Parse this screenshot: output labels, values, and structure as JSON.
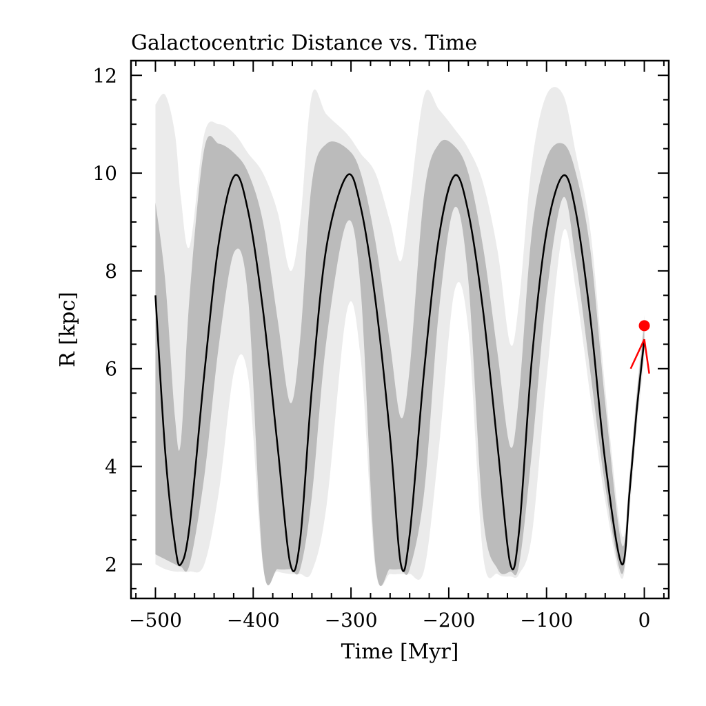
{
  "chart_data": {
    "type": "line",
    "title": "Galactocentric Distance vs. Time",
    "xlabel": "Time [Myr]",
    "ylabel": "R [kpc]",
    "xlim": [
      -525,
      25
    ],
    "ylim": [
      1.3,
      12.3
    ],
    "xticks": [
      -500,
      -400,
      -300,
      -200,
      -100,
      0
    ],
    "xtick_labels": [
      "−500",
      "−400",
      "−300",
      "−200",
      "−100",
      "0"
    ],
    "yticks": [
      2,
      4,
      6,
      8,
      10,
      12
    ],
    "ytick_labels": [
      "2",
      "4",
      "6",
      "8",
      "10",
      "12"
    ],
    "grid": false,
    "series": [
      {
        "role": "best-fit orbit",
        "color": "#000000",
        "x": [
          -500,
          -490,
          -480,
          -474,
          -465,
          -450,
          -435,
          -419,
          -405,
          -390,
          -375,
          -362,
          -352,
          -340,
          -325,
          -304,
          -290,
          -275,
          -260,
          -249,
          -240,
          -225,
          -210,
          -194,
          -180,
          -165,
          -150,
          -137,
          -128,
          -115,
          -100,
          -83,
          -70,
          -55,
          -40,
          -23,
          -15,
          -8,
          0
        ],
        "y": [
          7.5,
          4.3,
          2.4,
          2.0,
          2.8,
          5.9,
          8.6,
          9.95,
          9.2,
          7.2,
          4.4,
          2.0,
          2.5,
          5.6,
          8.5,
          9.95,
          9.3,
          7.4,
          4.6,
          2.0,
          2.6,
          6.0,
          8.7,
          9.95,
          9.2,
          7.2,
          4.4,
          2.0,
          2.7,
          6.2,
          8.8,
          9.95,
          9.2,
          7.0,
          4.1,
          2.0,
          3.5,
          5.1,
          6.6
        ]
      }
    ],
    "envelope": [
      {
        "role": "1-sigma orbits",
        "color": "#bbbbbb",
        "x": [
          -500,
          -490,
          -480,
          -474,
          -465,
          -450,
          -435,
          -419,
          -405,
          -390,
          -375,
          -362,
          -352,
          -340,
          -325,
          -304,
          -290,
          -275,
          -260,
          -249,
          -240,
          -225,
          -210,
          -194,
          -180,
          -165,
          -150,
          -137,
          -128,
          -115,
          -100,
          -83,
          -70,
          -55,
          -40,
          -23,
          -15,
          -8,
          0
        ],
        "lower": [
          2.2,
          2.1,
          2.0,
          1.95,
          2.0,
          3.8,
          6.5,
          8.4,
          7.4,
          2.0,
          1.9,
          1.9,
          1.9,
          3.4,
          6.6,
          9.0,
          7.6,
          2.0,
          1.9,
          1.9,
          1.9,
          3.5,
          7.2,
          9.3,
          7.8,
          3.0,
          1.9,
          1.85,
          2.0,
          4.3,
          7.5,
          9.5,
          8.2,
          5.9,
          3.6,
          1.8,
          3.3,
          4.9,
          6.4
        ],
        "upper": [
          9.4,
          7.8,
          5.0,
          4.5,
          7.5,
          10.5,
          10.6,
          10.4,
          10.0,
          9.0,
          7.0,
          5.3,
          6.6,
          9.8,
          10.6,
          10.5,
          10.0,
          8.6,
          6.5,
          5.0,
          6.0,
          9.6,
          10.6,
          10.55,
          10.0,
          8.5,
          6.3,
          4.4,
          5.5,
          8.8,
          10.3,
          10.6,
          10.0,
          8.4,
          5.3,
          2.4,
          3.8,
          5.4,
          6.9
        ]
      },
      {
        "role": "2-sigma orbits",
        "color": "#ebebeb",
        "x": [
          -500,
          -490,
          -480,
          -474,
          -465,
          -450,
          -435,
          -419,
          -405,
          -390,
          -375,
          -362,
          -352,
          -340,
          -325,
          -304,
          -290,
          -275,
          -260,
          -249,
          -240,
          -225,
          -210,
          -194,
          -180,
          -165,
          -150,
          -137,
          -128,
          -115,
          -100,
          -83,
          -70,
          -55,
          -40,
          -23,
          -15,
          -8,
          0
        ],
        "lower": [
          2.0,
          1.9,
          1.85,
          1.85,
          1.85,
          2.0,
          3.5,
          6.0,
          5.8,
          2.0,
          1.85,
          1.8,
          1.8,
          1.85,
          3.2,
          7.2,
          6.2,
          1.9,
          1.8,
          1.8,
          1.8,
          1.9,
          4.4,
          7.6,
          6.8,
          2.2,
          1.8,
          1.75,
          1.8,
          2.6,
          5.8,
          8.8,
          7.6,
          5.4,
          3.3,
          1.7,
          3.1,
          4.7,
          6.2
        ],
        "upper": [
          11.4,
          11.6,
          10.8,
          9.5,
          8.5,
          10.8,
          11.0,
          10.8,
          10.4,
          10.0,
          9.2,
          8.0,
          9.0,
          11.6,
          11.2,
          10.8,
          10.4,
          10.0,
          9.0,
          8.2,
          9.4,
          11.6,
          11.3,
          10.9,
          10.5,
          9.8,
          8.4,
          6.5,
          7.4,
          10.2,
          11.6,
          11.6,
          10.4,
          8.8,
          5.6,
          2.6,
          3.9,
          5.5,
          7.1
        ]
      }
    ],
    "annotations": [
      {
        "role": "current position",
        "shape": "circle",
        "color": "#ff0000",
        "x": 0,
        "y": 6.88
      },
      {
        "role": "uncertainty segments",
        "color": "#ff0000",
        "segments": [
          [
            [
              0,
              6.6
            ],
            [
              -14,
              6.0
            ]
          ],
          [
            [
              0,
              6.6
            ],
            [
              5,
              5.9
            ]
          ]
        ]
      }
    ]
  }
}
